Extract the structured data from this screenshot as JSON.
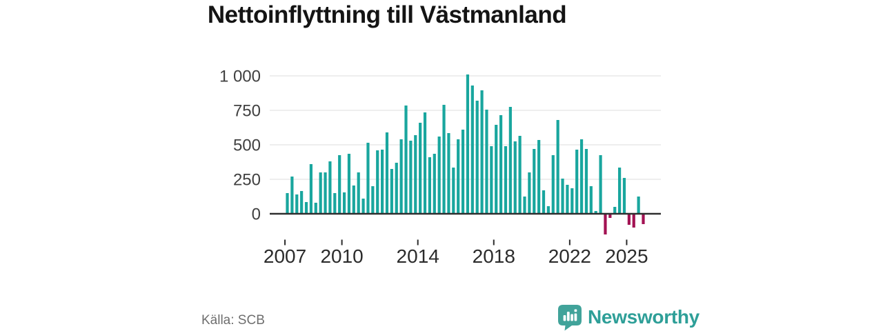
{
  "title": "Nettoinflyttning till Västmanland",
  "source": "Källa: SCB",
  "logo": {
    "text": "Newsworthy",
    "icon": "newsworthy-pin-barchart-icon",
    "color": "#2e9f98"
  },
  "colors": {
    "positive_bar": "#19a69e",
    "negative_bar": "#a31253",
    "gridline": "#e4e4e4",
    "zero_axis": "#2e2e2e",
    "y_label": "#404040",
    "x_label": "#2b2b2b"
  },
  "chart_data": {
    "type": "bar",
    "title": "Nettoinflyttning till Västmanland",
    "grid": "horizontal",
    "legend": "none",
    "ylim": [
      -200,
      1075
    ],
    "y_ticks": [
      0,
      250,
      500,
      750,
      1000
    ],
    "y_tick_labels": [
      "0",
      "250",
      "500",
      "750",
      "1 000"
    ],
    "x_tick_years": [
      "2007",
      "2010",
      "2014",
      "2018",
      "2022",
      "2025"
    ],
    "categories": [
      "2007 Q1",
      "2007 Q2",
      "2007 Q3",
      "2007 Q4",
      "2008 Q1",
      "2008 Q2",
      "2008 Q3",
      "2008 Q4",
      "2009 Q1",
      "2009 Q2",
      "2009 Q3",
      "2009 Q4",
      "2010 Q1",
      "2010 Q2",
      "2010 Q3",
      "2010 Q4",
      "2011 Q1",
      "2011 Q2",
      "2011 Q3",
      "2011 Q4",
      "2012 Q1",
      "2012 Q2",
      "2012 Q3",
      "2012 Q4",
      "2013 Q1",
      "2013 Q2",
      "2013 Q3",
      "2013 Q4",
      "2014 Q1",
      "2014 Q2",
      "2014 Q3",
      "2014 Q4",
      "2015 Q1",
      "2015 Q2",
      "2015 Q3",
      "2015 Q4",
      "2016 Q1",
      "2016 Q2",
      "2016 Q3",
      "2016 Q4",
      "2017 Q1",
      "2017 Q2",
      "2017 Q3",
      "2017 Q4",
      "2018 Q1",
      "2018 Q2",
      "2018 Q3",
      "2018 Q4",
      "2019 Q1",
      "2019 Q2",
      "2019 Q3",
      "2019 Q4",
      "2020 Q1",
      "2020 Q2",
      "2020 Q3",
      "2020 Q4",
      "2021 Q1",
      "2021 Q2",
      "2021 Q3",
      "2021 Q4",
      "2022 Q1",
      "2022 Q2",
      "2022 Q3",
      "2022 Q4",
      "2023 Q1",
      "2023 Q2",
      "2023 Q3",
      "2023 Q4",
      "2024 Q1",
      "2024 Q2",
      "2024 Q3",
      "2024 Q4",
      "2025 Q1",
      "2025 Q2",
      "2025 Q3",
      "2025 Q4"
    ],
    "values": [
      150,
      270,
      140,
      165,
      85,
      360,
      80,
      300,
      300,
      380,
      150,
      425,
      155,
      435,
      205,
      300,
      110,
      515,
      200,
      460,
      465,
      590,
      325,
      370,
      540,
      785,
      530,
      570,
      660,
      735,
      410,
      435,
      560,
      790,
      585,
      335,
      540,
      610,
      1010,
      930,
      820,
      895,
      755,
      490,
      645,
      715,
      490,
      775,
      525,
      565,
      125,
      300,
      470,
      535,
      170,
      55,
      425,
      680,
      255,
      210,
      185,
      465,
      540,
      470,
      200,
      20,
      425,
      -150,
      -30,
      50,
      335,
      260,
      -80,
      -100,
      125,
      -75
    ]
  }
}
